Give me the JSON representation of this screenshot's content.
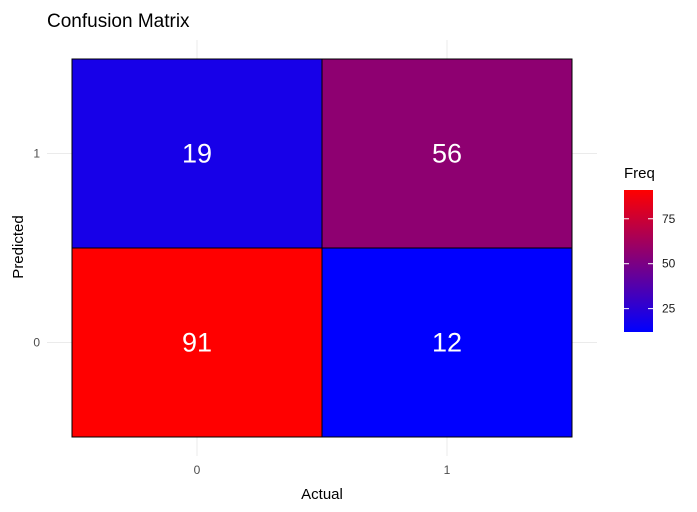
{
  "chart_data": {
    "type": "heatmap",
    "title": "Confusion Matrix",
    "xlabel": "Actual",
    "ylabel": "Predicted",
    "x_categories": [
      "0",
      "1"
    ],
    "y_categories": [
      "0",
      "1"
    ],
    "cells": [
      {
        "actual": "0",
        "predicted": "1",
        "freq": 19
      },
      {
        "actual": "1",
        "predicted": "1",
        "freq": 56
      },
      {
        "actual": "0",
        "predicted": "0",
        "freq": 91
      },
      {
        "actual": "1",
        "predicted": "0",
        "freq": 12
      }
    ],
    "legend": {
      "title": "Freq",
      "breaks": [
        25,
        50,
        75
      ],
      "break_labels": [
        "25",
        "50",
        "75"
      ],
      "min": 12,
      "max": 91,
      "low_color": "#0000FF",
      "high_color": "#FF0000",
      "placement": "right"
    },
    "grid": true
  }
}
